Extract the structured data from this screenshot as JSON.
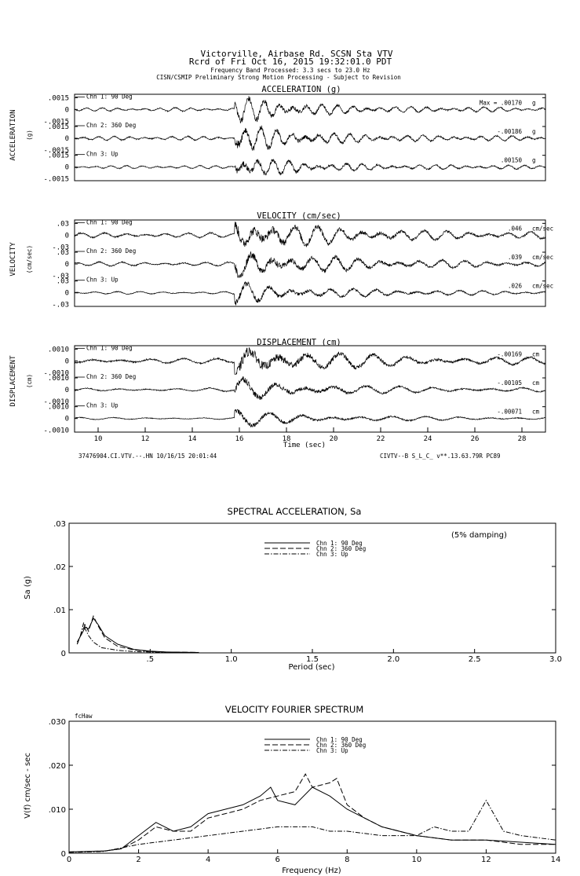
{
  "header": {
    "line1": "Victorville, Airbase Rd.    SCSN Sta VTV",
    "line2": "Rcrd of Fri Oct 16, 2015 19:32:01.0 PDT",
    "line3": "Frequency Band Processed: 3.3 secs to 23.0 Hz",
    "line4": "CISN/CSMIP Preliminary Strong Motion Processing - Subject to Revision"
  },
  "footer": {
    "left": "37476904.CI.VTV.--.HN 10/16/15 20:01:44",
    "right": "CIVTV--B  S_L_C_  v**.13.63.79R PC89"
  },
  "chart_data": [
    {
      "type": "line",
      "title": "ACCELERATION (g)",
      "side_label": "ACCELERATION",
      "unit_label": "(g)",
      "ytick_top": ".0015",
      "ytick_mid": "0",
      "ytick_bot": "-.0015",
      "ylim": [
        -0.0015,
        0.0015
      ],
      "xlim": [
        9,
        29
      ],
      "channels": [
        {
          "name": "Chn 1: 90 Deg",
          "peak": "Max =   .00170",
          "unit": "g",
          "amp": 0.0017
        },
        {
          "name": "Chn 2: 360 Deg",
          "peak": "-.00186",
          "unit": "g",
          "amp": 0.00186
        },
        {
          "name": "Chn 3: Up",
          "peak": ".00150",
          "unit": "g",
          "amp": 0.0015
        }
      ]
    },
    {
      "type": "line",
      "title": "VELOCITY (cm/sec)",
      "side_label": "VELOCITY",
      "unit_label": "(cm/sec)",
      "ytick_top": ".03",
      "ytick_mid": "0",
      "ytick_bot": "-.03",
      "ylim": [
        -0.03,
        0.03
      ],
      "xlim": [
        9,
        29
      ],
      "channels": [
        {
          "name": "Chn 1: 90 Deg",
          "peak": ".046",
          "unit": "cm/sec",
          "amp": 0.046
        },
        {
          "name": "Chn 2: 360 Deg",
          "peak": ".039",
          "unit": "cm/sec",
          "amp": 0.039
        },
        {
          "name": "Chn 3: Up",
          "peak": ".026",
          "unit": "cm/sec",
          "amp": 0.026
        }
      ]
    },
    {
      "type": "line",
      "title": "DISPLACEMENT (cm)",
      "side_label": "DISPLACEMENT",
      "unit_label": "(cm)",
      "ytick_top": ".0010",
      "ytick_mid": "0",
      "ytick_bot": "-.0010",
      "ylim": [
        -0.001,
        0.001
      ],
      "xlim": [
        9,
        29
      ],
      "xlabel": "Time (sec)",
      "xticks": [
        "10",
        "12",
        "14",
        "16",
        "18",
        "20",
        "22",
        "24",
        "26",
        "28"
      ],
      "channels": [
        {
          "name": "Chn 1: 90 Deg",
          "peak": "-.00169",
          "unit": "cm",
          "amp": 0.00169
        },
        {
          "name": "Chn 2: 360 Deg",
          "peak": "-.00105",
          "unit": "cm",
          "amp": 0.00105
        },
        {
          "name": "Chn 3: Up",
          "peak": "-.00071",
          "unit": "cm",
          "amp": 0.00071
        }
      ]
    },
    {
      "type": "line",
      "title": "SPECTRAL ACCELERATION, Sa",
      "xlabel": "Period (sec)",
      "ylabel": "Sa (g)",
      "note": "(5% damping)",
      "xlim": [
        0,
        3.0
      ],
      "ylim": [
        0,
        0.03
      ],
      "xticks": [
        {
          "v": 0.5,
          "t": ".5"
        },
        {
          "v": 1.0,
          "t": "1.0"
        },
        {
          "v": 1.5,
          "t": "1.5"
        },
        {
          "v": 2.0,
          "t": "2.0"
        },
        {
          "v": 2.5,
          "t": "2.5"
        },
        {
          "v": 3.0,
          "t": "3.0"
        }
      ],
      "yticks": [
        {
          "v": 0,
          "t": "0"
        },
        {
          "v": 0.01,
          "t": ".01"
        },
        {
          "v": 0.02,
          "t": ".02"
        },
        {
          "v": 0.03,
          "t": ".03"
        }
      ],
      "series": [
        {
          "name": "Chn 1: 90 Deg",
          "dash": "",
          "x": [
            0.05,
            0.08,
            0.1,
            0.12,
            0.15,
            0.18,
            0.22,
            0.3,
            0.4,
            0.5,
            0.6,
            0.8
          ],
          "values": [
            0.0025,
            0.0045,
            0.006,
            0.0055,
            0.008,
            0.0065,
            0.004,
            0.002,
            0.0008,
            0.0004,
            0.0002,
            0.0001
          ]
        },
        {
          "name": "Chn 2: 360 Deg",
          "dash": "7,3",
          "x": [
            0.05,
            0.08,
            0.1,
            0.12,
            0.15,
            0.18,
            0.22,
            0.3,
            0.4,
            0.5,
            0.6,
            0.8
          ],
          "values": [
            0.002,
            0.005,
            0.0065,
            0.005,
            0.0085,
            0.0062,
            0.0035,
            0.0015,
            0.0007,
            0.0003,
            0.0002,
            0.0001
          ]
        },
        {
          "name": "Chn 3: Up",
          "dash": "6,2,1.5,2",
          "x": [
            0.05,
            0.07,
            0.09,
            0.1,
            0.12,
            0.15,
            0.2,
            0.3,
            0.4,
            0.6
          ],
          "values": [
            0.002,
            0.004,
            0.007,
            0.0055,
            0.004,
            0.0025,
            0.0012,
            0.0006,
            0.0003,
            0.0001
          ]
        }
      ]
    },
    {
      "type": "line",
      "title": "VELOCITY FOURIER SPECTRUM",
      "xlabel": "Frequency (Hz)",
      "ylabel": "V(f)   cm/sec - sec",
      "corner_label": "fcHaw",
      "xlim": [
        0,
        14
      ],
      "ylim": [
        0,
        0.03
      ],
      "xticks": [
        {
          "v": 0,
          "t": "0"
        },
        {
          "v": 2,
          "t": "2"
        },
        {
          "v": 4,
          "t": "4"
        },
        {
          "v": 6,
          "t": "6"
        },
        {
          "v": 8,
          "t": "8"
        },
        {
          "v": 10,
          "t": "10"
        },
        {
          "v": 12,
          "t": "12"
        },
        {
          "v": 14,
          "t": "14"
        }
      ],
      "yticks": [
        {
          "v": 0,
          "t": "0"
        },
        {
          "v": 0.01,
          "t": ".010"
        },
        {
          "v": 0.02,
          "t": ".020"
        },
        {
          "v": 0.03,
          "t": ".030"
        }
      ],
      "series": [
        {
          "name": "Chn 1: 90 Deg",
          "dash": "",
          "x": [
            0,
            1,
            1.5,
            2,
            2.5,
            3,
            3.5,
            4,
            4.5,
            5,
            5.5,
            5.8,
            6,
            6.5,
            7,
            7.5,
            8,
            8.5,
            9,
            10,
            11,
            12,
            13,
            14
          ],
          "values": [
            0.0003,
            0.0005,
            0.001,
            0.004,
            0.007,
            0.005,
            0.006,
            0.009,
            0.01,
            0.011,
            0.013,
            0.015,
            0.012,
            0.011,
            0.015,
            0.013,
            0.01,
            0.008,
            0.006,
            0.004,
            0.003,
            0.003,
            0.0025,
            0.002
          ]
        },
        {
          "name": "Chn 2: 360 Deg",
          "dash": "7,3",
          "x": [
            0,
            1,
            1.5,
            2,
            2.5,
            3,
            3.5,
            4,
            4.5,
            5,
            5.5,
            6,
            6.5,
            6.8,
            7,
            7.5,
            7.7,
            8,
            8.5,
            9,
            10,
            11,
            12,
            13,
            14
          ],
          "values": [
            0.0003,
            0.0005,
            0.001,
            0.003,
            0.006,
            0.005,
            0.005,
            0.008,
            0.009,
            0.01,
            0.012,
            0.013,
            0.014,
            0.018,
            0.015,
            0.016,
            0.017,
            0.011,
            0.008,
            0.006,
            0.004,
            0.003,
            0.003,
            0.002,
            0.002
          ]
        },
        {
          "name": "Chn 3: Up",
          "dash": "6,2,1.5,2",
          "x": [
            0,
            1,
            2,
            3,
            4,
            5,
            6,
            7,
            7.5,
            8,
            9,
            10,
            10.5,
            11,
            11.5,
            12,
            12.5,
            13,
            14
          ],
          "values": [
            0.0002,
            0.0004,
            0.002,
            0.003,
            0.004,
            0.005,
            0.006,
            0.006,
            0.005,
            0.005,
            0.004,
            0.004,
            0.006,
            0.005,
            0.005,
            0.012,
            0.005,
            0.004,
            0.003
          ]
        }
      ]
    }
  ]
}
